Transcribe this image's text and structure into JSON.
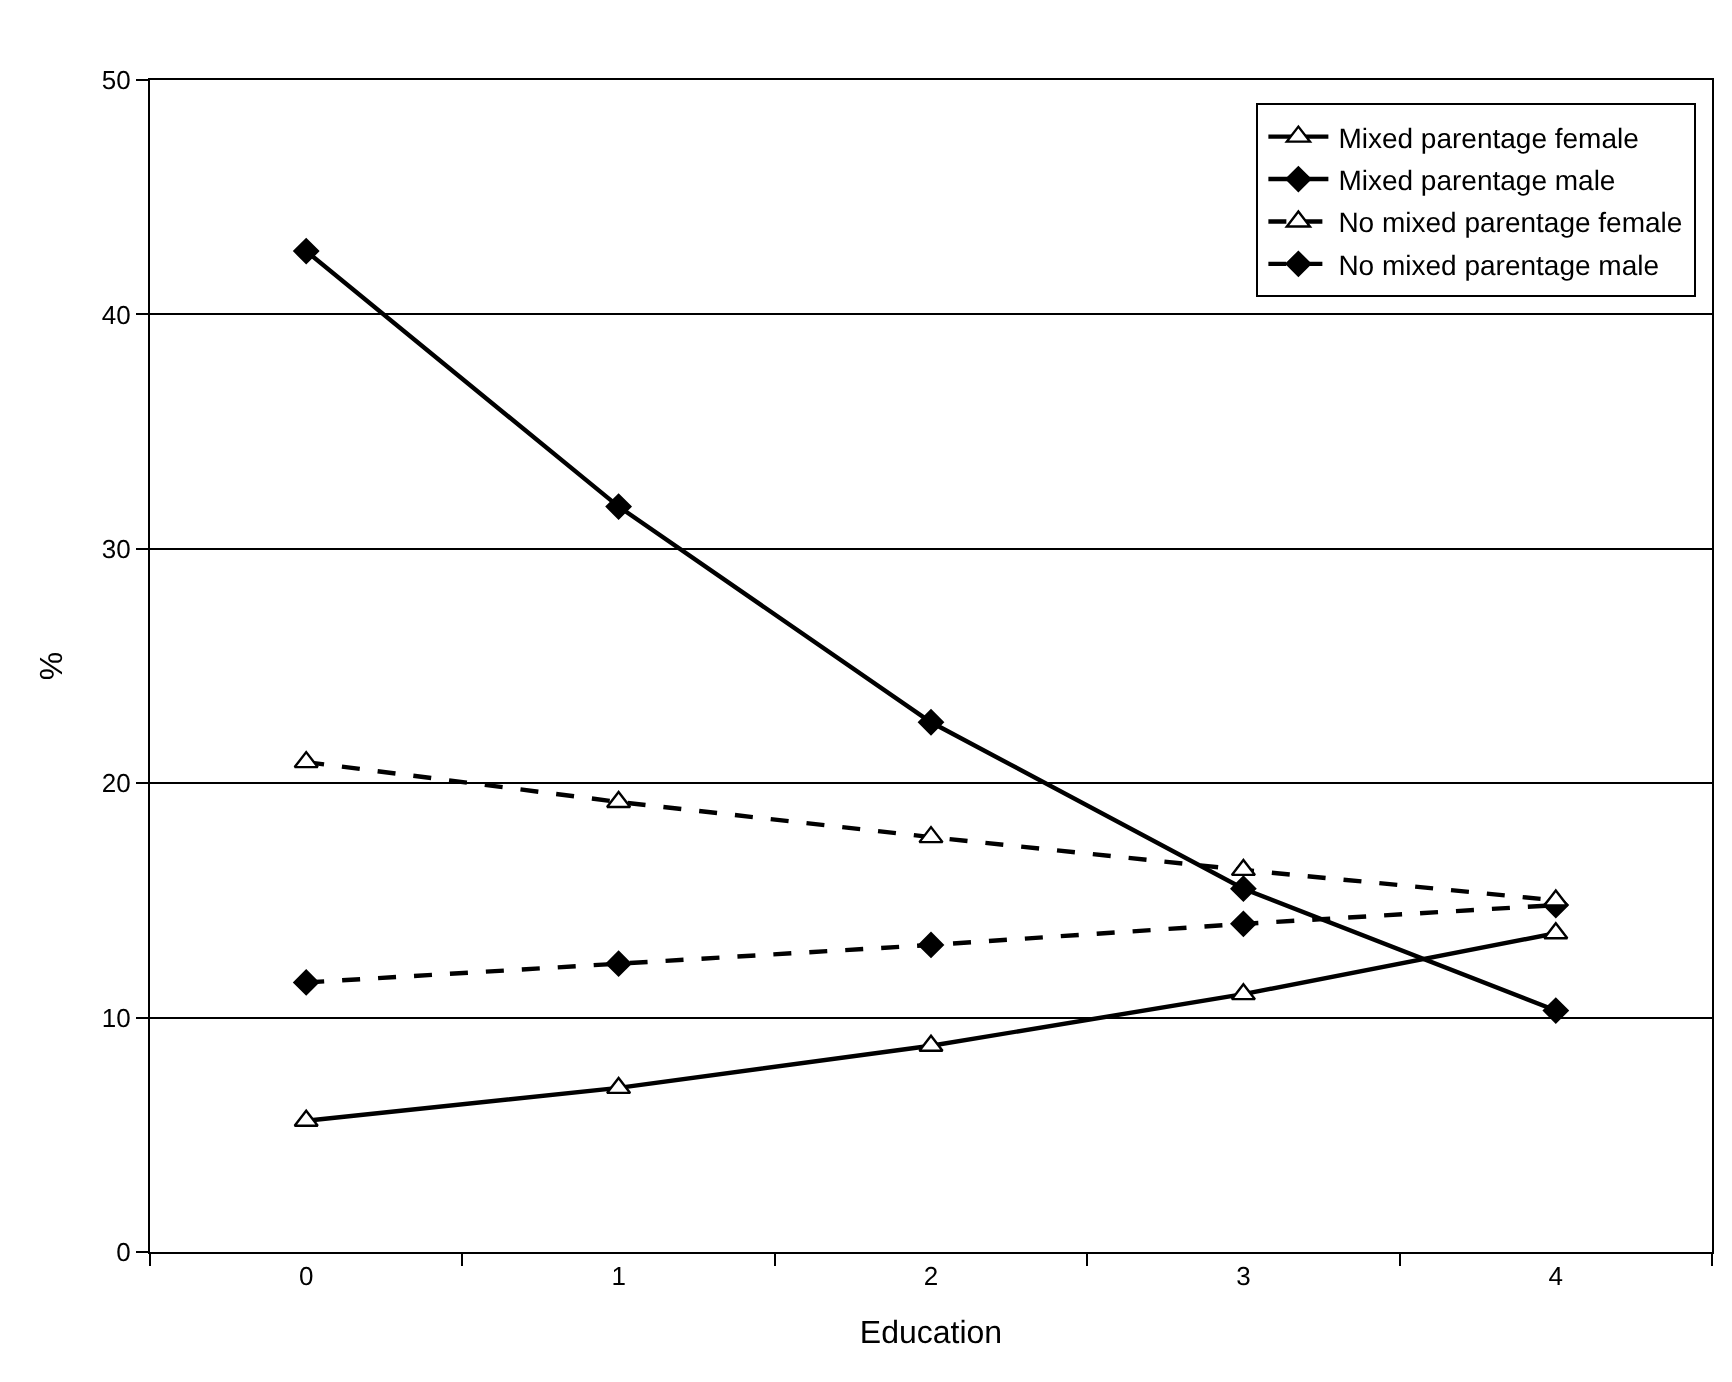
{
  "chart_data": {
    "type": "line",
    "xlabel": "Education",
    "ylabel": "%",
    "categories": [
      "0",
      "1",
      "2",
      "3",
      "4"
    ],
    "ylim": [
      0,
      50
    ],
    "yticks": [
      0,
      10,
      20,
      30,
      40,
      50
    ],
    "grid": "y",
    "legend": "top right",
    "series": [
      {
        "name": "Mixed parentage female",
        "color": "#000000",
        "marker": "triangle",
        "line_style": "solid",
        "values": [
          5.6,
          7.0,
          8.8,
          11.0,
          13.6
        ]
      },
      {
        "name": "Mixed parentage male",
        "color": "#000000",
        "marker": "diamond",
        "line_style": "solid",
        "values": [
          42.7,
          31.8,
          22.6,
          15.5,
          10.3
        ]
      },
      {
        "name": "No mixed parentage female",
        "color": "#000000",
        "marker": "triangle",
        "line_style": "dashed",
        "values": [
          20.9,
          19.2,
          17.7,
          16.3,
          15.0
        ]
      },
      {
        "name": "No mixed parentage male",
        "color": "#000000",
        "marker": "diamond",
        "line_style": "dashed",
        "values": [
          11.5,
          12.3,
          13.1,
          14.0,
          14.8
        ]
      }
    ]
  }
}
